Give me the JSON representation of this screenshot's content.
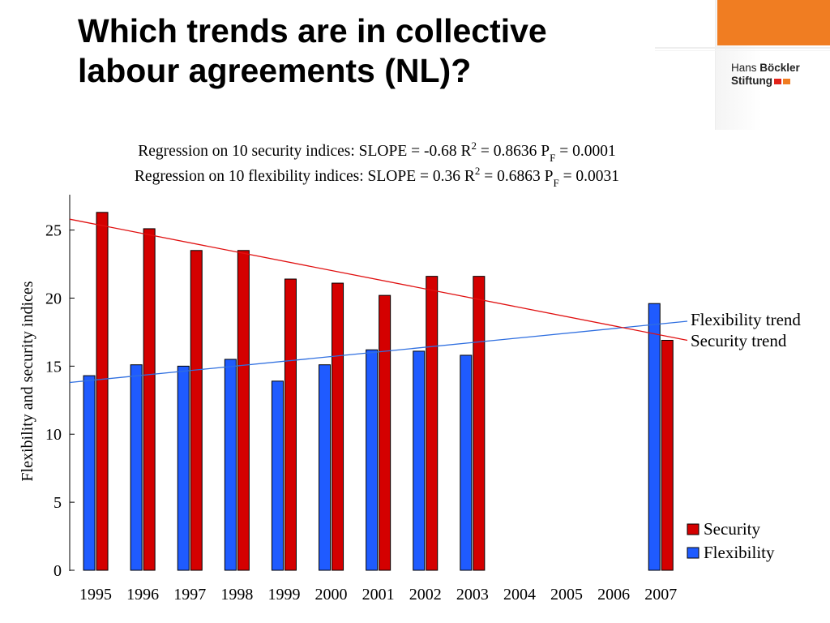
{
  "slide": {
    "title_line1": "Which trends are in collective",
    "title_line2": "labour agreements (NL)?"
  },
  "logo": {
    "word1": "Hans ",
    "word2": "Böckler",
    "word3": "Stiftung",
    "colors": {
      "orange": "#f07d22",
      "red": "#e2231a"
    }
  },
  "chart_data": {
    "type": "bar",
    "header_lines": [
      {
        "prefix": "Regression on 10 security indices: SLOPE = -0.68   R",
        "sup": "2",
        "mid": " = 0.8636   P",
        "sub": "F",
        "suffix": " = 0.0001"
      },
      {
        "prefix": "Regression on 10 flexibility indices: SLOPE = 0.36   R",
        "sup": "2",
        "mid": " = 0.6863   P",
        "sub": "F",
        "suffix": " = 0.0031"
      }
    ],
    "ylabel": "Flexibility and security indices",
    "xlabel": "",
    "ylim": [
      0,
      27.6
    ],
    "yticks": [
      0,
      5,
      10,
      15,
      20,
      25
    ],
    "categories": [
      "1995",
      "1996",
      "1997",
      "1998",
      "1999",
      "2000",
      "2001",
      "2002",
      "2003",
      "2004",
      "2005",
      "2006",
      "2007"
    ],
    "series": [
      {
        "name": "Flexibility",
        "color": "#1f5bff",
        "values": [
          14.3,
          15.1,
          15.0,
          15.5,
          13.9,
          15.1,
          16.2,
          16.1,
          15.8,
          null,
          null,
          null,
          19.6
        ]
      },
      {
        "name": "Security",
        "color": "#d40000",
        "values": [
          26.3,
          25.1,
          23.5,
          23.5,
          21.4,
          21.1,
          20.2,
          21.6,
          21.6,
          null,
          null,
          null,
          16.9
        ]
      }
    ],
    "trendlines": [
      {
        "name": "Flexibility trend",
        "label": "Flexibility trend",
        "color": "#2f6fe0",
        "start": 13.8,
        "end": 18.3
      },
      {
        "name": "Security trend",
        "label": "Security trend",
        "color": "#e01010",
        "start": 25.8,
        "end": 16.9
      }
    ],
    "legend": {
      "position": "bottom-right",
      "entries": [
        {
          "label": "Security",
          "color": "#d40000"
        },
        {
          "label": "Flexibility",
          "color": "#1f5bff"
        }
      ]
    },
    "grid": false
  }
}
